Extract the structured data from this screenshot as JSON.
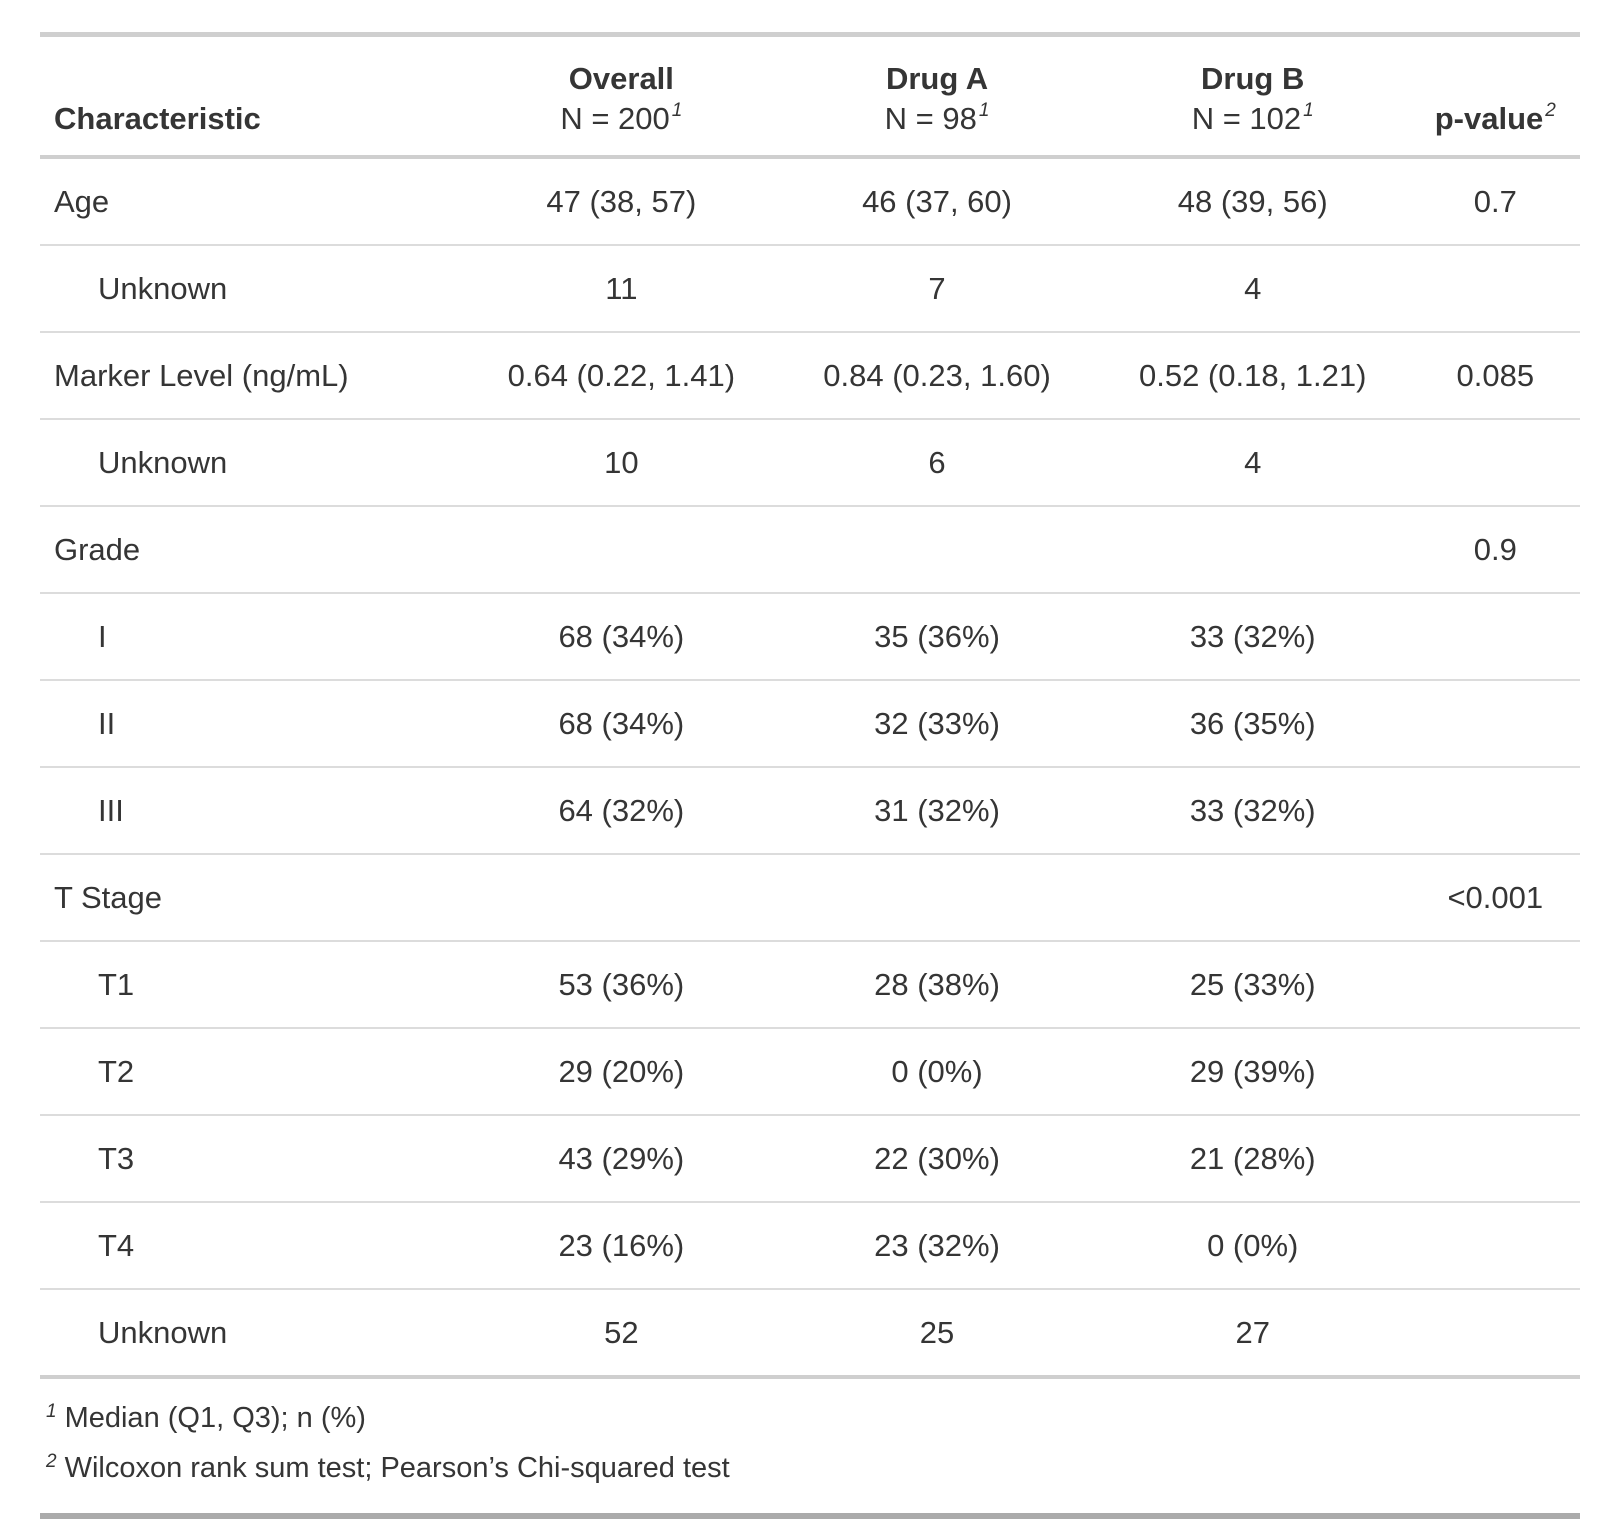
{
  "table": {
    "columns": [
      {
        "id": "characteristic",
        "label": "Characteristic"
      },
      {
        "id": "overall",
        "label": "Overall",
        "n_label": "N = 200",
        "footnote_ref": "1"
      },
      {
        "id": "drug_a",
        "label": "Drug A",
        "n_label": "N = 98",
        "footnote_ref": "1"
      },
      {
        "id": "drug_b",
        "label": "Drug B",
        "n_label": "N = 102",
        "footnote_ref": "1"
      },
      {
        "id": "p_value",
        "label": "p-value",
        "footnote_ref": "2"
      }
    ],
    "rows": [
      {
        "label": "Age",
        "indent": false,
        "overall": "47 (38, 57)",
        "drug_a": "46 (37, 60)",
        "drug_b": "48 (39, 56)",
        "p_value": "0.7"
      },
      {
        "label": "Unknown",
        "indent": true,
        "overall": "11",
        "drug_a": "7",
        "drug_b": "4",
        "p_value": ""
      },
      {
        "label": "Marker Level (ng/mL)",
        "indent": false,
        "overall": "0.64 (0.22, 1.41)",
        "drug_a": "0.84 (0.23, 1.60)",
        "drug_b": "0.52 (0.18, 1.21)",
        "p_value": "0.085"
      },
      {
        "label": "Unknown",
        "indent": true,
        "overall": "10",
        "drug_a": "6",
        "drug_b": "4",
        "p_value": ""
      },
      {
        "label": "Grade",
        "indent": false,
        "overall": "",
        "drug_a": "",
        "drug_b": "",
        "p_value": "0.9"
      },
      {
        "label": "I",
        "indent": true,
        "overall": "68 (34%)",
        "drug_a": "35 (36%)",
        "drug_b": "33 (32%)",
        "p_value": ""
      },
      {
        "label": "II",
        "indent": true,
        "overall": "68 (34%)",
        "drug_a": "32 (33%)",
        "drug_b": "36 (35%)",
        "p_value": ""
      },
      {
        "label": "III",
        "indent": true,
        "overall": "64 (32%)",
        "drug_a": "31 (32%)",
        "drug_b": "33 (32%)",
        "p_value": ""
      },
      {
        "label": "T Stage",
        "indent": false,
        "overall": "",
        "drug_a": "",
        "drug_b": "",
        "p_value": "<0.001"
      },
      {
        "label": "T1",
        "indent": true,
        "overall": "53 (36%)",
        "drug_a": "28 (38%)",
        "drug_b": "25 (33%)",
        "p_value": ""
      },
      {
        "label": "T2",
        "indent": true,
        "overall": "29 (20%)",
        "drug_a": "0 (0%)",
        "drug_b": "29 (39%)",
        "p_value": ""
      },
      {
        "label": "T3",
        "indent": true,
        "overall": "43 (29%)",
        "drug_a": "22 (30%)",
        "drug_b": "21 (28%)",
        "p_value": ""
      },
      {
        "label": "T4",
        "indent": true,
        "overall": "23 (16%)",
        "drug_a": "23 (32%)",
        "drug_b": "0 (0%)",
        "p_value": ""
      },
      {
        "label": "Unknown",
        "indent": true,
        "overall": "52",
        "drug_a": "25",
        "drug_b": "27",
        "p_value": ""
      }
    ],
    "footnotes": [
      {
        "marker": "1",
        "text": "Median (Q1, Q3); n (%)"
      },
      {
        "marker": "2",
        "text": "Wilcoxon rank sum test; Pearson’s Chi-squared test"
      }
    ]
  },
  "colors": {
    "text": "#353535",
    "row_separator": "#dcdcdc",
    "section_separator": "#cfcfcf",
    "table_bottom_border": "#ababab",
    "background": "#ffffff"
  }
}
